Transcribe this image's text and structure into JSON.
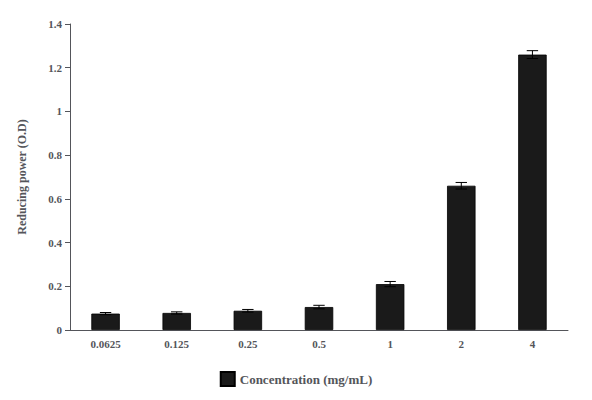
{
  "chart_data": {
    "type": "bar",
    "categories": [
      "0.0625",
      "0.125",
      "0.25",
      "0.5",
      "1",
      "2",
      "4"
    ],
    "series": [
      {
        "name": "Concentration (mg/mL)",
        "color": "#1a1a1a",
        "values": [
          0.075,
          0.078,
          0.088,
          0.105,
          0.21,
          0.66,
          1.26
        ],
        "errors": [
          0.005,
          0.005,
          0.006,
          0.008,
          0.012,
          0.015,
          0.018
        ]
      }
    ],
    "ylabel": "Reducing power (O.D)",
    "ylim": [
      0,
      1.4
    ],
    "yticks": [
      0,
      0.2,
      0.4,
      0.6,
      0.8,
      1.0,
      1.2,
      1.4
    ],
    "grid": false,
    "legend": "bottom"
  }
}
